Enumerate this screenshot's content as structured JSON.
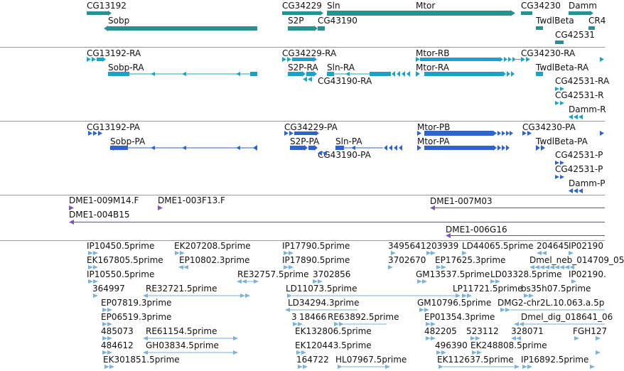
{
  "colors": {
    "gene": "#2a8f8f",
    "transcript": "#1aa3c7",
    "protein": "#2f62cf",
    "clone": "#7b5bb8",
    "est": "#7ab2dc",
    "separator": "#9a9a9a"
  },
  "tracks": [
    {
      "id": "genes",
      "color": "gene",
      "labels": [
        "CG13192",
        "Sobp",
        "CG34229",
        "Sln",
        "S2P",
        "CG43190",
        "Mtor",
        "CG34230",
        "Damm",
        "TwdlBeta",
        "CR4",
        "CG42531"
      ]
    },
    {
      "id": "transcripts",
      "color": "transcript",
      "labels": [
        "CG13192-RA",
        "Sobp-RA",
        "CG34229-RA",
        "S2P-RA",
        "Sln-RA",
        "CG43190-RA",
        "Mtor-RB",
        "Mtor-RA",
        "CG34230-RA",
        "TwdlBeta-RA",
        "CG42531-RA",
        "CG42531-R",
        "Damm-R"
      ]
    },
    {
      "id": "proteins",
      "color": "protein",
      "labels": [
        "CG13192-PA",
        "Sobp-PA",
        "CG34229-PA",
        "S2P-PA",
        "Sln-PA",
        "CG43190-PA",
        "Mtor-PB",
        "Mtor-PA",
        "CG34230-PA",
        "TwdlBeta-PA",
        "CG42531-P",
        "CG42531-P",
        "Damm-P"
      ]
    },
    {
      "id": "clones",
      "color": "clone",
      "labels": [
        "DME1-009M14.F",
        "DME1-003F13.F",
        "DME1-004B15",
        "DME1-007M03",
        "DME1-006G16"
      ]
    },
    {
      "id": "ests",
      "color": "est",
      "labels": [
        "IP10450.5prime",
        "EK207208.5prime",
        "IP17790.5prime",
        "3495641203939",
        "LD44065.5prime",
        "204645",
        "IP02190",
        "EK167805.5prime",
        "EP10802.3prime",
        "IP17890.5prime",
        "3702670",
        "EP17625.3prime",
        "Dmel_neb_014709_05",
        "IP10550.5prime",
        "RE32757.5prime",
        "3702856",
        "GM13537.5prime",
        "LD03328.5prime",
        "IP02190.",
        "364997",
        "RE32721.5prime",
        "LD11073.5prime",
        "LP11721.5prime",
        "bs35h07.5prime",
        "EP07819.3prime",
        "LD34294.3prime",
        "GM10796.5prime",
        "DMG2-chr2L.10.063.a.5p",
        "EP06519.3prime",
        "3",
        "18466",
        "RE63892.5prime",
        "EP01354.3prime",
        "Dmel_dig_018641_06",
        "485073",
        "RE61154.5prime",
        "482205",
        "523112",
        "328071",
        "FGH127",
        "EK132806.5prime",
        "484612",
        "GH03834.5prime",
        "EK120443.5prime",
        "496390",
        "EK248808.5prime",
        "EK301851.5prime",
        "164722",
        "HL07967.5prime",
        "EK112637.5prime",
        "IP16892.5prime"
      ]
    }
  ]
}
